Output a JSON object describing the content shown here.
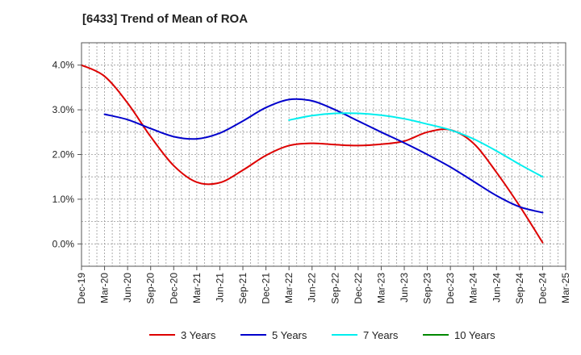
{
  "chart_data": {
    "type": "line",
    "title": "[6433]  Trend of Mean of ROA",
    "xlabel": "",
    "ylabel": "",
    "x_ticks": [
      "Dec-19",
      "Mar-20",
      "Jun-20",
      "Sep-20",
      "Dec-20",
      "Mar-21",
      "Jun-21",
      "Sep-21",
      "Dec-21",
      "Mar-22",
      "Jun-22",
      "Sep-22",
      "Dec-22",
      "Mar-23",
      "Jun-23",
      "Sep-23",
      "Dec-23",
      "Mar-24",
      "Jun-24",
      "Sep-24",
      "Dec-24",
      "Mar-25"
    ],
    "y_ticks": [
      "0.0%",
      "1.0%",
      "2.0%",
      "3.0%",
      "4.0%"
    ],
    "y_tick_values": [
      0,
      1,
      2,
      3,
      4
    ],
    "ylim": [
      -0.5,
      4.5
    ],
    "grid": true,
    "legend_position": "bottom",
    "series": [
      {
        "name": "3 Years",
        "color": "#dd0000",
        "x": [
          "Dec-19",
          "Mar-20",
          "Jun-20",
          "Sep-20",
          "Dec-20",
          "Mar-21",
          "Jun-21",
          "Sep-21",
          "Dec-21",
          "Mar-22",
          "Jun-22",
          "Sep-22",
          "Dec-22",
          "Mar-23",
          "Jun-23",
          "Sep-23",
          "Dec-23",
          "Mar-24",
          "Jun-24",
          "Sep-24",
          "Dec-24"
        ],
        "values": [
          4.0,
          3.75,
          3.15,
          2.4,
          1.75,
          1.38,
          1.37,
          1.65,
          1.98,
          2.2,
          2.25,
          2.22,
          2.2,
          2.23,
          2.3,
          2.5,
          2.55,
          2.25,
          1.6,
          0.85,
          0.03
        ]
      },
      {
        "name": "5 Years",
        "color": "#0000cc",
        "x": [
          "Mar-20",
          "Jun-20",
          "Sep-20",
          "Dec-20",
          "Mar-21",
          "Jun-21",
          "Sep-21",
          "Dec-21",
          "Mar-22",
          "Jun-22",
          "Sep-22",
          "Dec-22",
          "Mar-23",
          "Jun-23",
          "Sep-23",
          "Dec-23",
          "Mar-24",
          "Jun-24",
          "Sep-24",
          "Dec-24"
        ],
        "values": [
          2.9,
          2.78,
          2.58,
          2.4,
          2.35,
          2.48,
          2.75,
          3.05,
          3.23,
          3.2,
          3.0,
          2.75,
          2.5,
          2.26,
          2.0,
          1.72,
          1.4,
          1.08,
          0.83,
          0.7
        ]
      },
      {
        "name": "7 Years",
        "color": "#00eeee",
        "x": [
          "Mar-22",
          "Jun-22",
          "Sep-22",
          "Dec-22",
          "Mar-23",
          "Jun-23",
          "Sep-23",
          "Dec-23",
          "Mar-24",
          "Jun-24",
          "Sep-24",
          "Dec-24"
        ],
        "values": [
          2.77,
          2.87,
          2.92,
          2.92,
          2.88,
          2.8,
          2.68,
          2.55,
          2.35,
          2.08,
          1.78,
          1.5
        ]
      },
      {
        "name": "10 Years",
        "color": "#008800",
        "x": [],
        "values": []
      }
    ]
  }
}
